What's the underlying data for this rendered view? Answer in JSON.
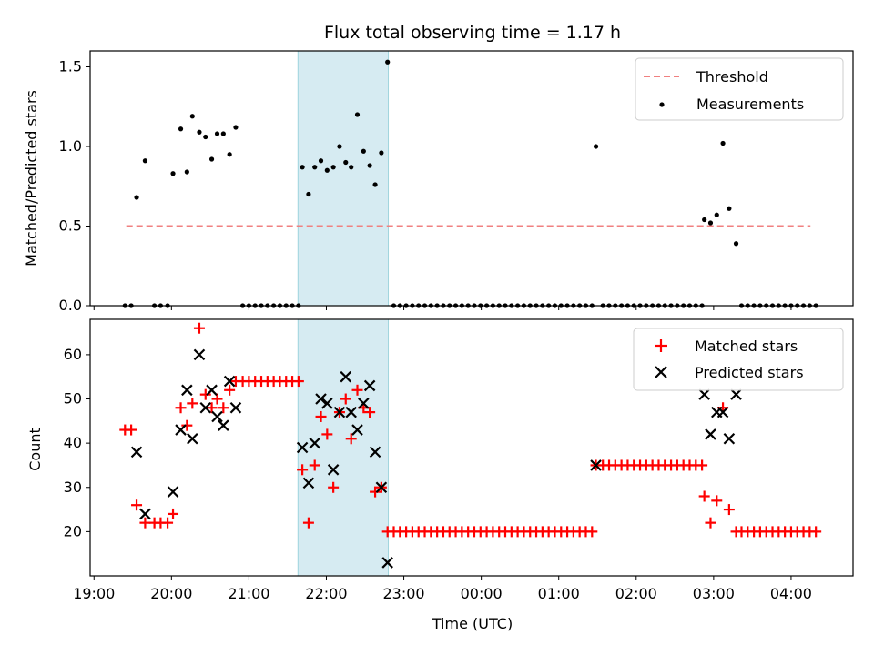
{
  "chart_data": [
    {
      "type": "scatter",
      "title": "Flux total observing time = 1.17 h",
      "xlabel": "",
      "ylabel": "Matched/Predicted stars",
      "ylim": [
        0,
        1.6
      ],
      "yticks": [
        "0.0",
        "0.5",
        "1.0",
        "1.5"
      ],
      "x_unit": "hours since 19:00 UTC",
      "shaded_interval": {
        "from": "21:38",
        "to": "22:48"
      },
      "legend_position": "upper-right",
      "legend": [
        "Threshold",
        "Measurements"
      ],
      "threshold": {
        "name": "Threshold",
        "value": 0.5,
        "x_start": "19:25",
        "x_end": "04:15",
        "color": "#f08080"
      },
      "series": [
        {
          "name": "Measurements",
          "color": "#000000",
          "points": [
            [
              0.4,
              0
            ],
            [
              0.48,
              0
            ],
            [
              0.55,
              0.68
            ],
            [
              0.66,
              0.91
            ],
            [
              0.78,
              0
            ],
            [
              0.86,
              0
            ],
            [
              0.95,
              0
            ],
            [
              1.02,
              0.83
            ],
            [
              1.12,
              1.11
            ],
            [
              1.2,
              0.84
            ],
            [
              1.27,
              1.19
            ],
            [
              1.36,
              1.09
            ],
            [
              1.44,
              1.06
            ],
            [
              1.52,
              0.92
            ],
            [
              1.59,
              1.08
            ],
            [
              1.67,
              1.08
            ],
            [
              1.75,
              0.95
            ],
            [
              1.83,
              1.12
            ],
            [
              1.92,
              0
            ],
            [
              2.0,
              0
            ],
            [
              2.08,
              0
            ],
            [
              2.16,
              0
            ],
            [
              2.24,
              0
            ],
            [
              2.32,
              0
            ],
            [
              2.4,
              0
            ],
            [
              2.48,
              0
            ],
            [
              2.56,
              0
            ],
            [
              2.64,
              0
            ],
            [
              2.69,
              0.87
            ],
            [
              2.77,
              0.7
            ],
            [
              2.85,
              0.87
            ],
            [
              2.93,
              0.91
            ],
            [
              3.01,
              0.85
            ],
            [
              3.09,
              0.87
            ],
            [
              3.17,
              1.0
            ],
            [
              3.25,
              0.9
            ],
            [
              3.32,
              0.87
            ],
            [
              3.4,
              1.2
            ],
            [
              3.48,
              0.97
            ],
            [
              3.56,
              0.88
            ],
            [
              3.63,
              0.76
            ],
            [
              3.71,
              0.96
            ],
            [
              3.79,
              1.53
            ],
            [
              3.87,
              0
            ],
            [
              3.95,
              0
            ],
            [
              4.03,
              0
            ],
            [
              4.11,
              0
            ],
            [
              4.19,
              0
            ],
            [
              4.27,
              0
            ],
            [
              4.35,
              0
            ],
            [
              4.43,
              0
            ],
            [
              4.51,
              0
            ],
            [
              4.59,
              0
            ],
            [
              4.67,
              0
            ],
            [
              4.75,
              0
            ],
            [
              4.83,
              0
            ],
            [
              4.91,
              0
            ],
            [
              4.99,
              0
            ],
            [
              5.07,
              0
            ],
            [
              5.15,
              0
            ],
            [
              5.23,
              0
            ],
            [
              5.31,
              0
            ],
            [
              5.39,
              0
            ],
            [
              5.47,
              0
            ],
            [
              5.55,
              0
            ],
            [
              5.63,
              0
            ],
            [
              5.71,
              0
            ],
            [
              5.79,
              0
            ],
            [
              5.87,
              0
            ],
            [
              5.95,
              0
            ],
            [
              6.03,
              0
            ],
            [
              6.11,
              0
            ],
            [
              6.19,
              0
            ],
            [
              6.27,
              0
            ],
            [
              6.35,
              0
            ],
            [
              6.43,
              0
            ],
            [
              6.48,
              1.0
            ],
            [
              6.57,
              0
            ],
            [
              6.65,
              0
            ],
            [
              6.73,
              0
            ],
            [
              6.81,
              0
            ],
            [
              6.89,
              0
            ],
            [
              6.97,
              0
            ],
            [
              7.05,
              0
            ],
            [
              7.13,
              0
            ],
            [
              7.21,
              0
            ],
            [
              7.29,
              0
            ],
            [
              7.37,
              0
            ],
            [
              7.45,
              0
            ],
            [
              7.53,
              0
            ],
            [
              7.61,
              0
            ],
            [
              7.69,
              0
            ],
            [
              7.77,
              0
            ],
            [
              7.85,
              0
            ],
            [
              7.88,
              0.54
            ],
            [
              7.96,
              0.52
            ],
            [
              8.04,
              0.57
            ],
            [
              8.12,
              1.02
            ],
            [
              8.2,
              0.61
            ],
            [
              8.29,
              0.39
            ],
            [
              8.36,
              0
            ],
            [
              8.44,
              0
            ],
            [
              8.52,
              0
            ],
            [
              8.6,
              0
            ],
            [
              8.68,
              0
            ],
            [
              8.76,
              0
            ],
            [
              8.84,
              0
            ],
            [
              8.92,
              0
            ],
            [
              9.0,
              0
            ],
            [
              9.08,
              0
            ],
            [
              9.16,
              0
            ],
            [
              9.24,
              0
            ],
            [
              9.32,
              0
            ]
          ]
        }
      ]
    },
    {
      "type": "scatter",
      "title": "",
      "xlabel": "Time (UTC)",
      "ylabel": "Count",
      "ylim": [
        10,
        68
      ],
      "yticks": [
        "20",
        "30",
        "40",
        "50",
        "60"
      ],
      "xticks": [
        "19:00",
        "20:00",
        "21:00",
        "22:00",
        "23:00",
        "00:00",
        "01:00",
        "02:00",
        "03:00",
        "04:00"
      ],
      "x_unit": "hours since 19:00 UTC",
      "shaded_interval": {
        "from": "21:38",
        "to": "22:48"
      },
      "legend_position": "upper-right",
      "legend": [
        "Matched stars",
        "Predicted stars"
      ],
      "series": [
        {
          "name": "Matched stars",
          "marker": "+",
          "color": "#ff0000",
          "points": [
            [
              0.4,
              43
            ],
            [
              0.48,
              43
            ],
            [
              0.55,
              26
            ],
            [
              0.66,
              22
            ],
            [
              0.78,
              22
            ],
            [
              0.86,
              22
            ],
            [
              0.95,
              22
            ],
            [
              1.02,
              24
            ],
            [
              1.12,
              48
            ],
            [
              1.2,
              44
            ],
            [
              1.27,
              49
            ],
            [
              1.36,
              66
            ],
            [
              1.44,
              51
            ],
            [
              1.52,
              48
            ],
            [
              1.59,
              50
            ],
            [
              1.67,
              48
            ],
            [
              1.75,
              52
            ],
            [
              1.83,
              54
            ],
            [
              1.92,
              54
            ],
            [
              2.0,
              54
            ],
            [
              2.08,
              54
            ],
            [
              2.16,
              54
            ],
            [
              2.24,
              54
            ],
            [
              2.32,
              54
            ],
            [
              2.4,
              54
            ],
            [
              2.48,
              54
            ],
            [
              2.56,
              54
            ],
            [
              2.64,
              54
            ],
            [
              2.69,
              34
            ],
            [
              2.77,
              22
            ],
            [
              2.85,
              35
            ],
            [
              2.93,
              46
            ],
            [
              3.01,
              42
            ],
            [
              3.09,
              30
            ],
            [
              3.17,
              47
            ],
            [
              3.25,
              50
            ],
            [
              3.32,
              41
            ],
            [
              3.4,
              52
            ],
            [
              3.48,
              48
            ],
            [
              3.56,
              47
            ],
            [
              3.63,
              29
            ],
            [
              3.71,
              30
            ],
            [
              3.79,
              20
            ],
            [
              3.87,
              20
            ],
            [
              3.95,
              20
            ],
            [
              4.03,
              20
            ],
            [
              4.11,
              20
            ],
            [
              4.19,
              20
            ],
            [
              4.27,
              20
            ],
            [
              4.35,
              20
            ],
            [
              4.43,
              20
            ],
            [
              4.51,
              20
            ],
            [
              4.59,
              20
            ],
            [
              4.67,
              20
            ],
            [
              4.75,
              20
            ],
            [
              4.83,
              20
            ],
            [
              4.91,
              20
            ],
            [
              4.99,
              20
            ],
            [
              5.07,
              20
            ],
            [
              5.15,
              20
            ],
            [
              5.23,
              20
            ],
            [
              5.31,
              20
            ],
            [
              5.39,
              20
            ],
            [
              5.47,
              20
            ],
            [
              5.55,
              20
            ],
            [
              5.63,
              20
            ],
            [
              5.71,
              20
            ],
            [
              5.79,
              20
            ],
            [
              5.87,
              20
            ],
            [
              5.95,
              20
            ],
            [
              6.03,
              20
            ],
            [
              6.11,
              20
            ],
            [
              6.19,
              20
            ],
            [
              6.27,
              20
            ],
            [
              6.35,
              20
            ],
            [
              6.43,
              20
            ],
            [
              6.48,
              35
            ],
            [
              6.57,
              35
            ],
            [
              6.65,
              35
            ],
            [
              6.73,
              35
            ],
            [
              6.81,
              35
            ],
            [
              6.89,
              35
            ],
            [
              6.97,
              35
            ],
            [
              7.05,
              35
            ],
            [
              7.13,
              35
            ],
            [
              7.21,
              35
            ],
            [
              7.29,
              35
            ],
            [
              7.37,
              35
            ],
            [
              7.45,
              35
            ],
            [
              7.53,
              35
            ],
            [
              7.61,
              35
            ],
            [
              7.69,
              35
            ],
            [
              7.77,
              35
            ],
            [
              7.85,
              35
            ],
            [
              7.88,
              28
            ],
            [
              7.96,
              22
            ],
            [
              8.04,
              27
            ],
            [
              8.12,
              48
            ],
            [
              8.2,
              25
            ],
            [
              8.29,
              20
            ],
            [
              8.36,
              20
            ],
            [
              8.44,
              20
            ],
            [
              8.52,
              20
            ],
            [
              8.6,
              20
            ],
            [
              8.68,
              20
            ],
            [
              8.76,
              20
            ],
            [
              8.84,
              20
            ],
            [
              8.92,
              20
            ],
            [
              9.0,
              20
            ],
            [
              9.08,
              20
            ],
            [
              9.16,
              20
            ],
            [
              9.24,
              20
            ],
            [
              9.32,
              20
            ]
          ]
        },
        {
          "name": "Predicted stars",
          "marker": "x",
          "color": "#000000",
          "points": [
            [
              0.55,
              38
            ],
            [
              0.66,
              24
            ],
            [
              1.02,
              29
            ],
            [
              1.12,
              43
            ],
            [
              1.2,
              52
            ],
            [
              1.27,
              41
            ],
            [
              1.36,
              60
            ],
            [
              1.44,
              48
            ],
            [
              1.52,
              52
            ],
            [
              1.59,
              46
            ],
            [
              1.67,
              44
            ],
            [
              1.75,
              54
            ],
            [
              1.83,
              48
            ],
            [
              2.69,
              39
            ],
            [
              2.77,
              31
            ],
            [
              2.85,
              40
            ],
            [
              2.93,
              50
            ],
            [
              3.01,
              49
            ],
            [
              3.09,
              34
            ],
            [
              3.17,
              47
            ],
            [
              3.25,
              55
            ],
            [
              3.32,
              47
            ],
            [
              3.4,
              43
            ],
            [
              3.48,
              49
            ],
            [
              3.56,
              53
            ],
            [
              3.63,
              38
            ],
            [
              3.71,
              30
            ],
            [
              3.79,
              13
            ],
            [
              6.48,
              35
            ],
            [
              7.88,
              51
            ],
            [
              7.96,
              42
            ],
            [
              8.04,
              47
            ],
            [
              8.12,
              47
            ],
            [
              8.2,
              41
            ],
            [
              8.29,
              51
            ]
          ]
        }
      ]
    }
  ]
}
